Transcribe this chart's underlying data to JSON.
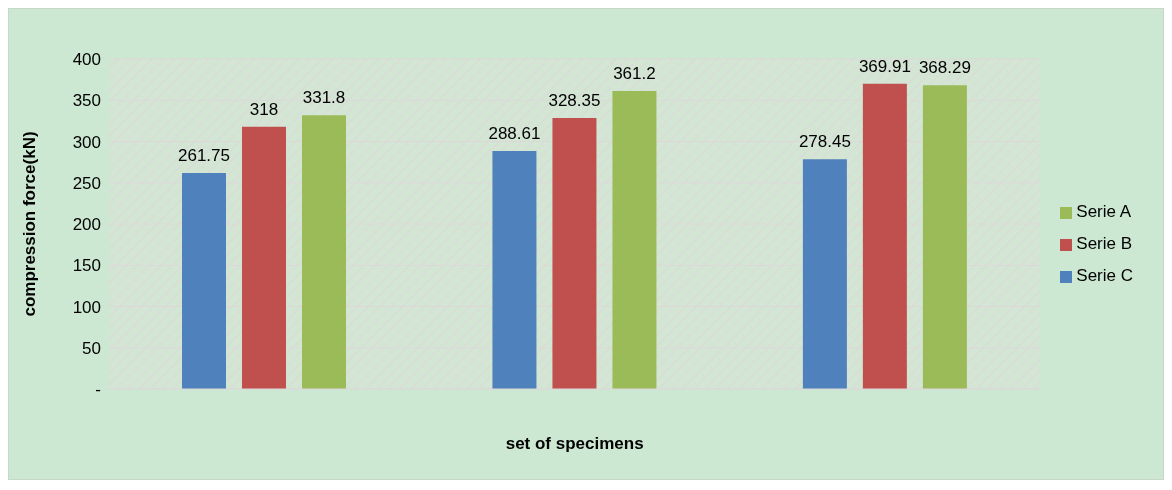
{
  "chart_data": {
    "type": "bar",
    "xlabel": "set of specimens",
    "ylabel": "compression force(kN)",
    "categories": [
      null,
      null,
      null
    ],
    "series": [
      {
        "name": "Serie C",
        "color": "#4f81bd",
        "values": [
          261.75,
          288.61,
          278.45
        ]
      },
      {
        "name": "Serie B",
        "color": "#c0504d",
        "values": [
          318,
          328.35,
          369.91
        ]
      },
      {
        "name": "Serie A",
        "color": "#9bbb59",
        "values": [
          331.8,
          361.2,
          368.29
        ]
      }
    ],
    "ylim": [
      0,
      400
    ],
    "yticks": [
      {
        "value": 0,
        "label": "-"
      },
      50,
      100,
      150,
      200,
      250,
      300,
      350,
      400
    ],
    "grid": "y",
    "legend": "right",
    "data_labels": true
  }
}
